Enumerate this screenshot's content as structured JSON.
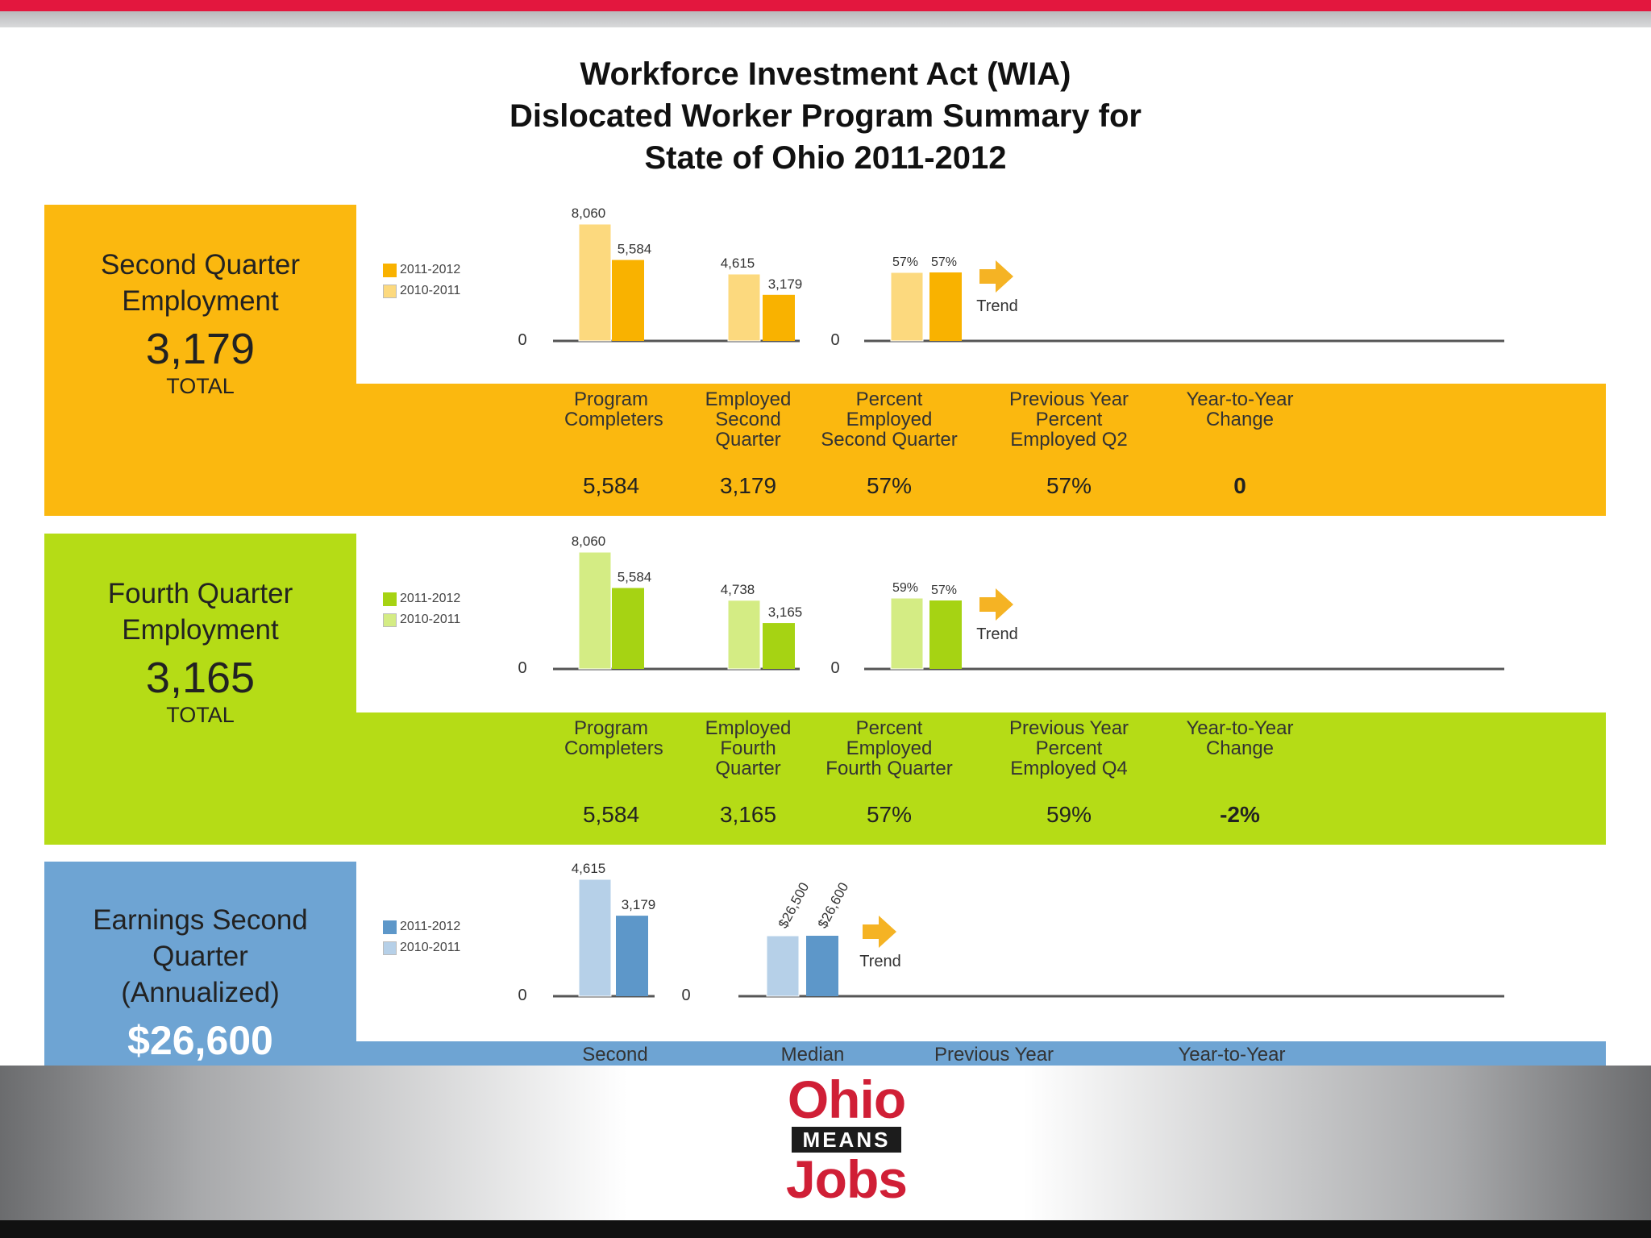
{
  "title": {
    "line1": "Workforce Investment Act (WIA)",
    "line2": "Dislocated Worker Program Summary for",
    "line3": "State of Ohio 2011-2012"
  },
  "colors": {
    "q2_dark": "#f9b200",
    "q2_light": "#fcd97e",
    "q2_panel": "#fbb80f",
    "q4_dark": "#a6d313",
    "q4_light": "#d4ec84",
    "q4_panel": "#b5dc16",
    "earn_dark": "#5d97c9",
    "earn_light": "#b6d0e8",
    "earn_panel": "#6ea4d3",
    "arrow": "#f5b324"
  },
  "logo": {
    "ohio": "Ohio",
    "means": "MEANS",
    "jobs": "Jobs"
  },
  "sections": [
    {
      "id": "q2",
      "label_line1": "Second Quarter",
      "label_line2": "Employment",
      "label_line3": "",
      "big_value": "3,179",
      "total_label": "TOTAL",
      "legend": [
        "2011-2012",
        "2010-2011"
      ],
      "trend_label": "Trend",
      "zero_label": "0",
      "columns": [
        {
          "header": [
            "Program",
            "Completers"
          ],
          "value": "5,584"
        },
        {
          "header": [
            "Employed",
            "Second",
            "Quarter"
          ],
          "value": "3,179"
        },
        {
          "header": [
            "Percent",
            "Employed",
            "Second Quarter"
          ],
          "value": "57%"
        },
        {
          "header": [
            "Previous Year",
            "Percent",
            "Employed Q2"
          ],
          "value": "57%"
        },
        {
          "header": [
            "Year-to-Year",
            "Change"
          ],
          "value": "0"
        }
      ]
    },
    {
      "id": "q4",
      "label_line1": "Fourth Quarter",
      "label_line2": "Employment",
      "label_line3": "",
      "big_value": "3,165",
      "total_label": "TOTAL",
      "legend": [
        "2011-2012",
        "2010-2011"
      ],
      "trend_label": "Trend",
      "zero_label": "0",
      "columns": [
        {
          "header": [
            "Program",
            "Completers"
          ],
          "value": "5,584"
        },
        {
          "header": [
            "Employed",
            "Fourth",
            "Quarter"
          ],
          "value": "3,165"
        },
        {
          "header": [
            "Percent",
            "Employed",
            "Fourth Quarter"
          ],
          "value": "57%"
        },
        {
          "header": [
            "Previous Year",
            "Percent",
            "Employed Q4"
          ],
          "value": "59%"
        },
        {
          "header": [
            "Year-to-Year",
            "Change"
          ],
          "value": "-2%"
        }
      ]
    },
    {
      "id": "earn",
      "label_line1": "Earnings Second",
      "label_line2": "Quarter",
      "label_line3": "(Annualized)",
      "big_value": "$26,600",
      "total_label": "",
      "legend": [
        "2011-2012",
        "2010-2011"
      ],
      "trend_label": "Trend",
      "zero_label": "0",
      "columns": [
        {
          "header": [
            "Second"
          ],
          "value": ""
        },
        {
          "header": [
            "Median"
          ],
          "value": ""
        },
        {
          "header": [
            "Previous Year"
          ],
          "value": ""
        },
        {
          "header": [
            "Year-to-Year"
          ],
          "value": ""
        }
      ]
    }
  ],
  "chart_data": [
    {
      "type": "bar",
      "title": "Second Quarter Employment",
      "categories": [
        "Program Completers",
        "Employed Second Quarter"
      ],
      "series": [
        {
          "name": "2010-2011",
          "values": [
            8060,
            4615
          ],
          "labels": [
            "8,060",
            "4,615"
          ]
        },
        {
          "name": "2011-2012",
          "values": [
            5584,
            3179
          ],
          "labels": [
            "5,584",
            "3,179"
          ]
        }
      ],
      "ylim": [
        0,
        8060
      ]
    },
    {
      "type": "bar",
      "title": "Second Quarter Employment",
      "categories": [
        "Percent Employed Second Quarter"
      ],
      "series": [
        {
          "name": "2010-2011",
          "values": [
            57
          ],
          "labels": [
            "57%"
          ]
        },
        {
          "name": "2011-2012",
          "values": [
            57
          ],
          "labels": [
            "57%"
          ]
        }
      ],
      "ylim": [
        0,
        100
      ]
    },
    {
      "type": "bar",
      "title": "Fourth Quarter Employment",
      "categories": [
        "Program Completers",
        "Employed Fourth Quarter"
      ],
      "series": [
        {
          "name": "2010-2011",
          "values": [
            8060,
            4738
          ],
          "labels": [
            "8,060",
            "4,738"
          ]
        },
        {
          "name": "2011-2012",
          "values": [
            5584,
            3165
          ],
          "labels": [
            "5,584",
            "3,165"
          ]
        }
      ],
      "ylim": [
        0,
        8060
      ]
    },
    {
      "type": "bar",
      "title": "Fourth Quarter Employment",
      "categories": [
        "Percent Employed Fourth Quarter"
      ],
      "series": [
        {
          "name": "2010-2011",
          "values": [
            59
          ],
          "labels": [
            "59%"
          ]
        },
        {
          "name": "2011-2012",
          "values": [
            57
          ],
          "labels": [
            "57%"
          ]
        }
      ],
      "ylim": [
        0,
        100
      ]
    },
    {
      "type": "bar",
      "title": "Earnings Second Quarter (Annualized)",
      "categories": [
        "Second"
      ],
      "series": [
        {
          "name": "2010-2011",
          "values": [
            4615
          ],
          "labels": [
            "4,615"
          ]
        },
        {
          "name": "2011-2012",
          "values": [
            3179
          ],
          "labels": [
            "3,179"
          ]
        }
      ],
      "ylim": [
        0,
        4615
      ]
    },
    {
      "type": "bar",
      "title": "Earnings Second Quarter (Annualized)",
      "categories": [
        "Median"
      ],
      "series": [
        {
          "name": "2010-2011",
          "values": [
            26500
          ],
          "labels": [
            "$26,500"
          ]
        },
        {
          "name": "2011-2012",
          "values": [
            26600
          ],
          "labels": [
            "$26,600"
          ]
        }
      ],
      "ylim": [
        0,
        60000
      ]
    }
  ]
}
